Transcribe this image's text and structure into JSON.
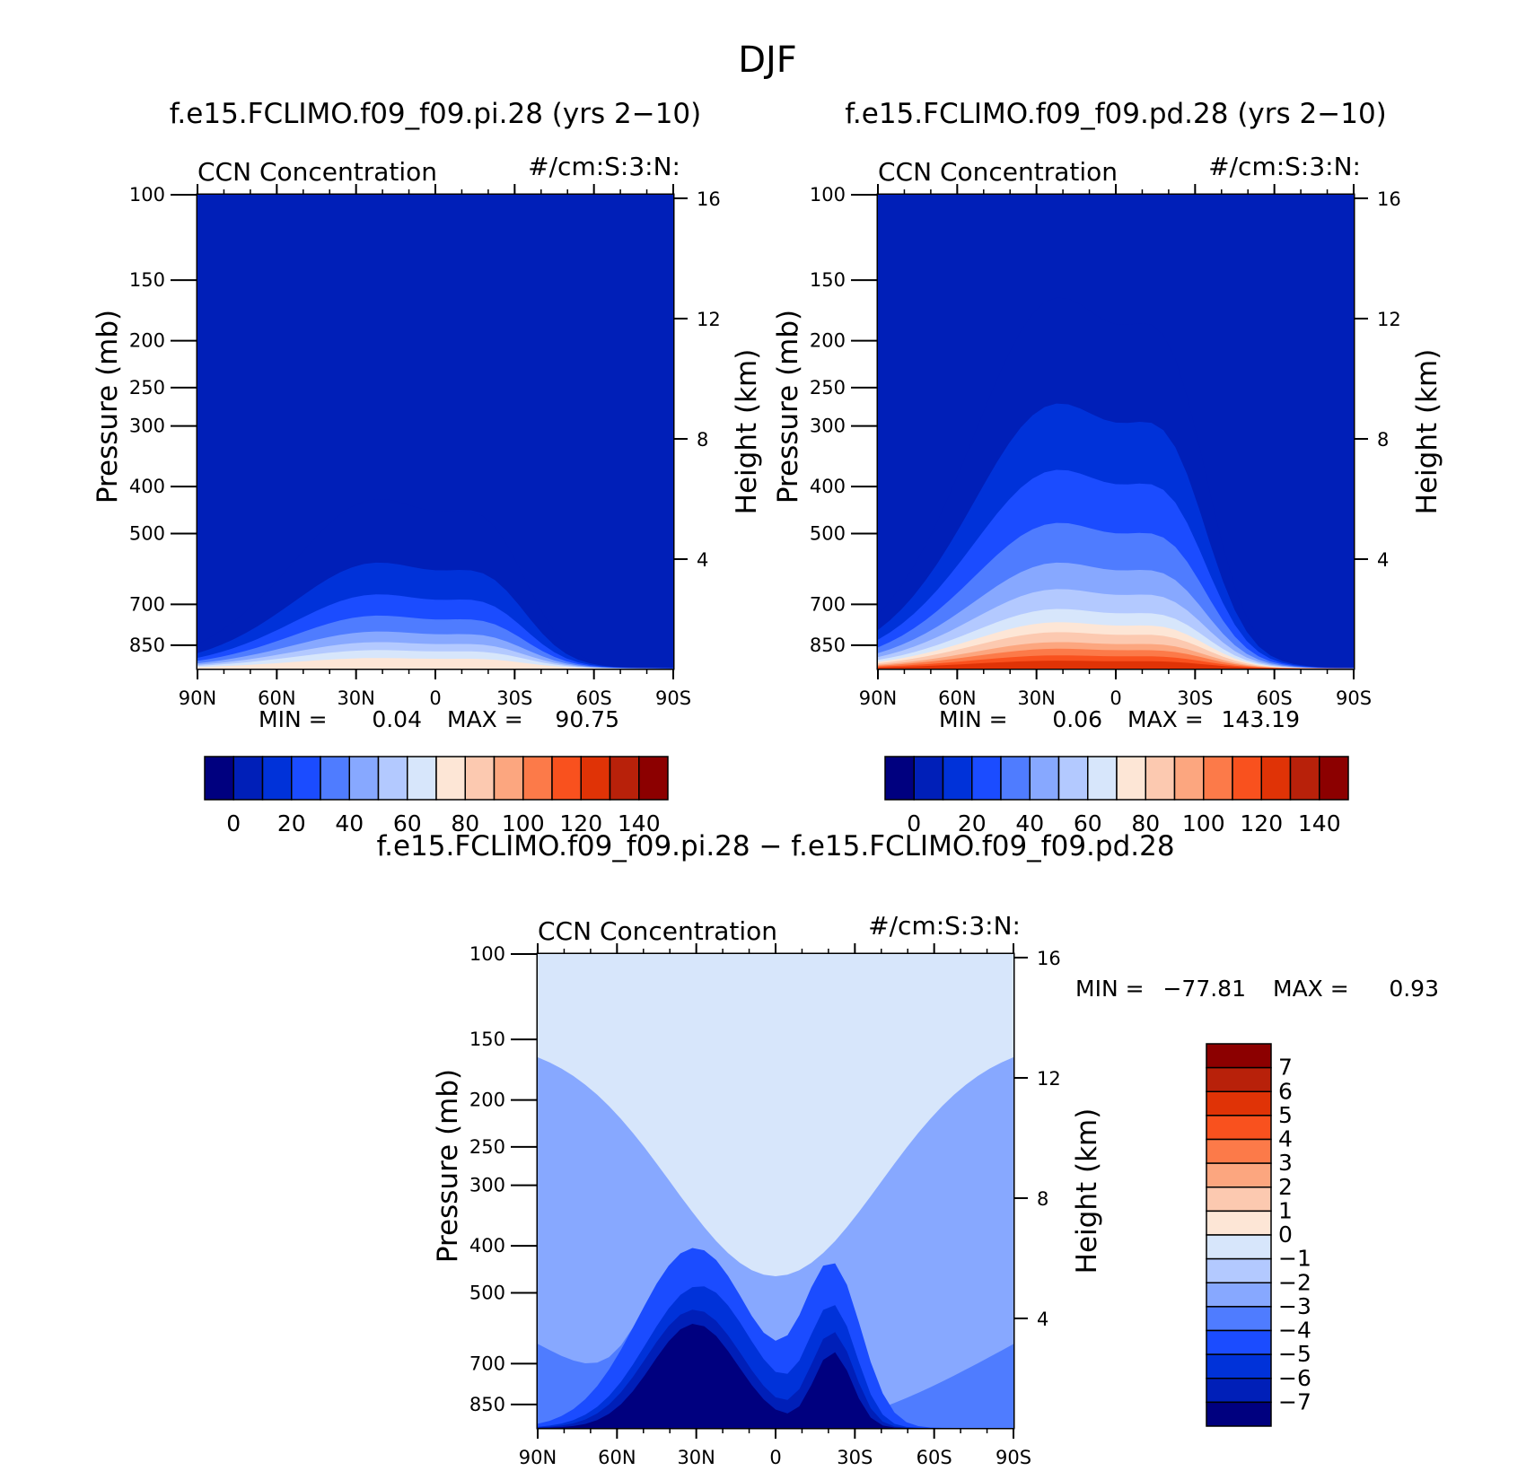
{
  "figure_title": "DJF",
  "chart_data": [
    {
      "id": "pi",
      "type": "heatmap",
      "title": "f.e15.FCLIMO.f09_f09.pi.28 (yrs 2−10)",
      "variable": "CCN Concentration",
      "units": "#/cm:S:3:N:",
      "ylabel": "Pressure (mb)",
      "ylabel_right": "Height (km)",
      "x_ticks": [
        "90N",
        "60N",
        "30N",
        "0",
        "30S",
        "60S",
        "90S"
      ],
      "y_ticks": [
        "100",
        "150",
        "200",
        "250",
        "300",
        "400",
        "500",
        "700",
        "850"
      ],
      "y_ticks_right": [
        "16",
        "12",
        "8",
        "4"
      ],
      "stats": {
        "min_label": "MIN =",
        "min": "0.04",
        "max_label": "MAX =",
        "max": "90.75"
      },
      "colorbar": {
        "orientation": "horizontal",
        "labels": [
          "0",
          "20",
          "40",
          "60",
          "80",
          "100",
          "120",
          "140"
        ],
        "levels": [
          -10,
          0,
          10,
          20,
          30,
          40,
          50,
          60,
          70,
          80,
          90,
          100,
          110,
          120,
          130,
          140,
          150
        ]
      },
      "background_level": 0
    },
    {
      "id": "pd",
      "type": "heatmap",
      "title": "f.e15.FCLIMO.f09_f09.pd.28 (yrs 2−10)",
      "variable": "CCN Concentration",
      "units": "#/cm:S:3:N:",
      "ylabel": "Pressure (mb)",
      "ylabel_right": "Height (km)",
      "x_ticks": [
        "90N",
        "60N",
        "30N",
        "0",
        "30S",
        "60S",
        "90S"
      ],
      "y_ticks": [
        "100",
        "150",
        "200",
        "250",
        "300",
        "400",
        "500",
        "700",
        "850"
      ],
      "y_ticks_right": [
        "16",
        "12",
        "8",
        "4"
      ],
      "stats": {
        "min_label": "MIN =",
        "min": "0.06",
        "max_label": "MAX =",
        "max": "143.19"
      },
      "colorbar": {
        "orientation": "horizontal",
        "labels": [
          "0",
          "20",
          "40",
          "60",
          "80",
          "100",
          "120",
          "140"
        ],
        "levels": [
          -10,
          0,
          10,
          20,
          30,
          40,
          50,
          60,
          70,
          80,
          90,
          100,
          110,
          120,
          130,
          140,
          150
        ]
      },
      "background_level": 0
    },
    {
      "id": "diff",
      "type": "heatmap",
      "title": "f.e15.FCLIMO.f09_f09.pi.28 − f.e15.FCLIMO.f09_f09.pd.28",
      "variable": "CCN Concentration",
      "units": "#/cm:S:3:N:",
      "ylabel": "Pressure (mb)",
      "ylabel_right": "Height (km)",
      "x_ticks": [
        "90N",
        "60N",
        "30N",
        "0",
        "30S",
        "60S",
        "90S"
      ],
      "y_ticks": [
        "100",
        "150",
        "200",
        "250",
        "300",
        "400",
        "500",
        "700",
        "850"
      ],
      "y_ticks_right": [
        "16",
        "12",
        "8",
        "4"
      ],
      "stats": {
        "min_label": "MIN =",
        "min": "−77.81",
        "max_label": "MAX =",
        "max": "0.93"
      },
      "colorbar": {
        "orientation": "vertical",
        "labels": [
          "7",
          "6",
          "5",
          "4",
          "3",
          "2",
          "1",
          "0",
          "−1",
          "−2",
          "−3",
          "−4",
          "−5",
          "−6",
          "−7"
        ],
        "levels": [
          -8,
          -7,
          -6,
          -5,
          -4,
          -3,
          -2,
          -1,
          0,
          1,
          2,
          3,
          4,
          5,
          6,
          7,
          8
        ]
      },
      "background_level": -1
    }
  ],
  "palette": [
    "#00007f",
    "#001fb8",
    "#0032d9",
    "#1b4cff",
    "#4f7cff",
    "#87a8ff",
    "#b3c9ff",
    "#d7e6fb",
    "#fde6d6",
    "#fcc9b0",
    "#fca67f",
    "#fc7a49",
    "#f9511e",
    "#e03306",
    "#b8210a",
    "#8c0000"
  ]
}
